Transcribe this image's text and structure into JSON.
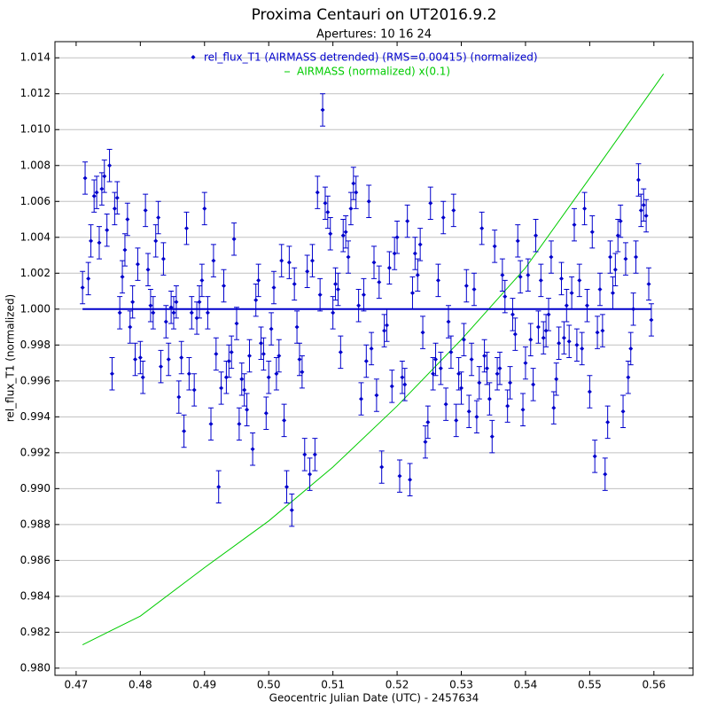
{
  "chart_data": {
    "type": "scatter",
    "title": "Proxima Centauri on UT2016.9.2",
    "subtitle": "Apertures: 10 16 24",
    "x_label": "Geocentric Julian Date (UTC) - 2457634",
    "y_label": "rel_flux_T1 (normalized)",
    "xlim": [
      0.4667,
      0.5661
    ],
    "ylim": [
      0.9796,
      1.0149
    ],
    "xticks": [
      0.47,
      0.48,
      0.49,
      {
        "value": 0.5,
        "label": "0.50"
      },
      0.51,
      0.52,
      0.53,
      0.54,
      0.55,
      0.56
    ],
    "yticks": [
      {
        "value": 0.98,
        "label": "0.980"
      },
      0.982,
      0.984,
      0.986,
      0.988,
      {
        "value": 0.99,
        "label": "0.990"
      },
      0.992,
      0.994,
      0.996,
      0.998,
      {
        "value": 1.0,
        "label": "1.000"
      },
      1.002,
      1.004,
      1.006,
      1.008,
      {
        "value": 1.01,
        "label": "1.010"
      },
      1.012,
      1.014
    ],
    "grid": true,
    "legend": "top",
    "hline": 1.0,
    "series": [
      {
        "name": "rel_flux_T1 (AIRMASS detrended) (RMS=0.00415) (normalized)",
        "color": "#0000cc",
        "error": 0.0009,
        "x": [
          0.471,
          0.4714,
          0.4719,
          0.4723,
          0.4728,
          0.4732,
          0.4736,
          0.474,
          0.4744,
          0.4748,
          0.4752,
          0.4756,
          0.476,
          0.4764,
          0.4768,
          0.4772,
          0.4776,
          0.478,
          0.4784,
          0.4788,
          0.4792,
          0.4796,
          0.48,
          0.4804,
          0.4808,
          0.4812,
          0.4816,
          0.482,
          0.4824,
          0.4828,
          0.4832,
          0.4836,
          0.484,
          0.4844,
          0.4848,
          0.4852,
          0.4856,
          0.486,
          0.4864,
          0.4868,
          0.4872,
          0.4876,
          0.488,
          0.4884,
          0.4888,
          0.4892,
          0.4896,
          0.49,
          0.4905,
          0.491,
          0.4914,
          0.4918,
          0.4922,
          0.4926,
          0.493,
          0.4934,
          0.4938,
          0.4942,
          0.4946,
          0.495,
          0.4954,
          0.4958,
          0.4962,
          0.4966,
          0.497,
          0.4975,
          0.498,
          0.4984,
          0.4988,
          0.4992,
          0.4996,
          0.5,
          0.5004,
          0.5008,
          0.5012,
          0.5016,
          0.502,
          0.5024,
          0.5028,
          0.5032,
          0.5036,
          0.504,
          0.5044,
          0.5048,
          0.5052,
          0.5056,
          0.506,
          0.5064,
          0.5068,
          0.5072,
          0.5076,
          0.508,
          0.5084,
          0.5088,
          0.5092,
          0.5096,
          0.51,
          0.5104,
          0.5108,
          0.5112,
          0.5116,
          0.512,
          0.5124,
          0.5128,
          0.5132,
          0.5136,
          0.514,
          0.5144,
          0.5148,
          0.5152,
          0.5156,
          0.516,
          0.5164,
          0.5168,
          0.5172,
          0.5176,
          0.518,
          0.5184,
          0.5188,
          0.5192,
          0.5196,
          0.52,
          0.5204,
          0.5208,
          0.5212,
          0.5216,
          0.522,
          0.5224,
          0.5228,
          0.5232,
          0.5236,
          0.524,
          0.5244,
          0.5248,
          0.5252,
          0.5256,
          0.526,
          0.5264,
          0.5268,
          0.5272,
          0.5276,
          0.528,
          0.5284,
          0.5288,
          0.5292,
          0.5296,
          0.53,
          0.5304,
          0.5308,
          0.5312,
          0.5316,
          0.532,
          0.5324,
          0.5328,
          0.5332,
          0.5336,
          0.534,
          0.5344,
          0.5348,
          0.5352,
          0.5356,
          0.536,
          0.5364,
          0.5368,
          0.5372,
          0.5376,
          0.538,
          0.5384,
          0.5388,
          0.5392,
          0.5396,
          0.54,
          0.5404,
          0.5408,
          0.5412,
          0.5416,
          0.542,
          0.5424,
          0.5428,
          0.5432,
          0.5436,
          0.544,
          0.5444,
          0.5448,
          0.5452,
          0.5456,
          0.546,
          0.5464,
          0.5468,
          0.5472,
          0.5476,
          0.548,
          0.5484,
          0.5488,
          0.5492,
          0.5496,
          0.55,
          0.5504,
          0.5508,
          0.5512,
          0.5516,
          0.552,
          0.5524,
          0.5528,
          0.5532,
          0.5536,
          0.554,
          0.5544,
          0.5548,
          0.5552,
          0.5556,
          0.556,
          0.5564,
          0.5568,
          0.5572,
          0.5576,
          0.558,
          0.5584,
          0.5588,
          0.5592,
          0.5596
        ],
        "values": [
          1.0012,
          1.0073,
          1.0017,
          1.0038,
          1.0063,
          1.0065,
          1.0037,
          1.0067,
          1.0074,
          1.0044,
          1.008,
          0.9964,
          1.0056,
          1.0062,
          0.9998,
          1.0018,
          1.0033,
          1.005,
          0.999,
          1.0004,
          0.9972,
          1.0025,
          0.9973,
          0.9962,
          1.0055,
          1.0022,
          1.0002,
          0.9998,
          1.0038,
          1.0051,
          0.9968,
          1.0028,
          0.9993,
          0.9972,
          1.0001,
          0.9998,
          1.0004,
          0.9951,
          0.9973,
          0.9932,
          1.0045,
          0.9964,
          0.9998,
          0.9955,
          0.9995,
          1.0004,
          1.0016,
          1.0056,
          0.9998,
          0.9936,
          1.0027,
          0.9975,
          0.9901,
          0.9956,
          1.0013,
          0.9962,
          0.9971,
          0.9976,
          1.0039,
          0.9992,
          0.9936,
          0.9961,
          0.9955,
          0.9944,
          0.9974,
          0.9922,
          1.0005,
          1.0016,
          0.9981,
          0.9975,
          0.9942,
          0.9962,
          0.9989,
          1.0012,
          0.9964,
          0.9974,
          1.0027,
          0.9938,
          0.9901,
          1.0026,
          0.9888,
          1.0014,
          0.999,
          0.9972,
          0.9965,
          0.9919,
          1.0021,
          0.9908,
          1.0027,
          0.9919,
          1.0065,
          1.0008,
          1.0111,
          1.0059,
          1.0054,
          1.0042,
          0.9998,
          1.0014,
          1.0011,
          0.9976,
          1.0041,
          1.0043,
          1.0029,
          1.0056,
          1.007,
          1.0065,
          1.0002,
          0.995,
          1.0008,
          0.9971,
          1.006,
          0.9978,
          1.0026,
          0.9952,
          1.0015,
          0.9912,
          0.9988,
          0.9991,
          1.0023,
          0.9957,
          1.0031,
          1.004,
          0.9907,
          0.9962,
          0.9958,
          1.0049,
          0.9905,
          1.0009,
          1.0031,
          1.0019,
          1.0036,
          0.9987,
          0.9926,
          0.9937,
          1.0059,
          0.9964,
          0.9972,
          1.0016,
          0.9967,
          1.0051,
          0.9947,
          0.9993,
          0.9976,
          1.0055,
          0.9938,
          0.9964,
          0.9956,
          0.9983,
          1.0013,
          0.9943,
          0.9972,
          1.0011,
          0.994,
          0.9959,
          1.0045,
          0.9974,
          0.9967,
          0.995,
          0.9929,
          1.0035,
          0.9964,
          0.9967,
          1.0019,
          1.0007,
          0.9946,
          0.9959,
          0.9997,
          0.9986,
          1.0038,
          1.0018,
          0.9944,
          0.997,
          1.0019,
          0.9983,
          0.9958,
          1.0041,
          0.999,
          1.0016,
          0.9984,
          0.9988,
          0.9997,
          1.0029,
          0.9945,
          0.9961,
          0.9981,
          1.0017,
          0.9984,
          1.0002,
          0.9982,
          1.0009,
          1.0047,
          0.998,
          1.0016,
          0.9978,
          1.0056,
          1.0002,
          0.9954,
          1.0043,
          0.9918,
          0.9987,
          1.0011,
          0.9988,
          0.9908,
          0.9937,
          1.0029,
          1.0009,
          1.0022,
          1.0041,
          1.0049,
          0.9943,
          1.0028,
          0.9962,
          0.9978,
          1.0,
          1.0029,
          1.0072,
          1.0055,
          1.0058,
          1.0052,
          1.0014,
          0.9994
        ]
      },
      {
        "name": "AIRMASS (normalized) x(0.1)",
        "color": "#00cc00",
        "x": [
          0.471,
          0.48,
          0.49,
          0.5,
          0.51,
          0.52,
          0.53,
          0.54,
          0.55,
          0.5615
        ],
        "values": [
          0.9813,
          0.9829,
          0.9856,
          0.9882,
          0.9912,
          0.9946,
          0.9983,
          1.0023,
          1.0073,
          1.0131
        ]
      }
    ]
  }
}
